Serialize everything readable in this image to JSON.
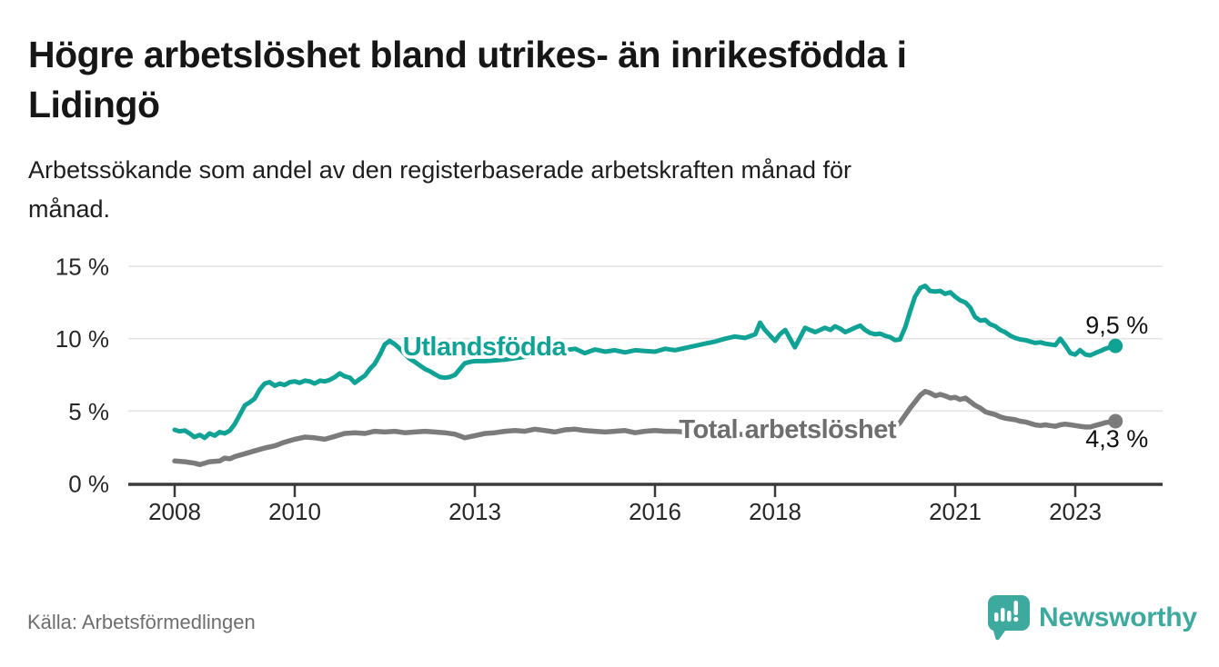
{
  "title": "Högre arbetslöshet bland utrikes- än inrikesfödda i\nLidingö",
  "subtitle": "Arbetssökande som andel av den registerbaserade arbetskraften månad för\nmånad.",
  "source": "Källa: Arbetsförmedlingen",
  "logo": {
    "text": "Newsworthy",
    "icon": "bar-chart-speech-bubble"
  },
  "colors": {
    "background": "#ffffff",
    "grid": "#e4e4e4",
    "axis": "#3a3a3a",
    "tick_label": "#272727",
    "foreign_series": "#11a296",
    "total_series": "#7b7b7b",
    "total_label": "#6e6e6e",
    "end_label": "#111111",
    "logo_teal": "#3ea99e"
  },
  "chart_data": {
    "type": "line",
    "title": "Högre arbetslöshet bland utrikes- än inrikesfödda i Lidingö",
    "xlabel": "",
    "ylabel": "Arbetssökande som andel av den registerbaserade arbetskraften",
    "y_unit": "%",
    "x_range": [
      2008.0,
      2023.67
    ],
    "ylim": [
      0,
      15
    ],
    "grid": "horizontal",
    "legend_position": "inline-labels",
    "x_ticks": [
      2008,
      2010,
      2013,
      2016,
      2018,
      2021,
      2023
    ],
    "x_tick_labels": [
      "2008",
      "2010",
      "2013",
      "2016",
      "2018",
      "2021",
      "2023"
    ],
    "y_ticks": [
      0,
      5,
      10,
      15
    ],
    "y_tick_labels": [
      "0 %",
      "5 %",
      "10 %",
      "15 %"
    ],
    "series": [
      {
        "id": "utlandsfodda",
        "name": "Utlandsfödda",
        "color": "#11a296",
        "end_value": 9.5,
        "label_anchor": {
          "year": 2011.8,
          "pct": 8.85
        },
        "end_label": {
          "text": "9,5 %",
          "year": 2023.17,
          "pct": 10.36
        },
        "points": [
          [
            2008.0,
            3.7
          ],
          [
            2008.08,
            3.6
          ],
          [
            2008.17,
            3.65
          ],
          [
            2008.25,
            3.45
          ],
          [
            2008.33,
            3.2
          ],
          [
            2008.42,
            3.35
          ],
          [
            2008.5,
            3.15
          ],
          [
            2008.58,
            3.45
          ],
          [
            2008.67,
            3.3
          ],
          [
            2008.75,
            3.55
          ],
          [
            2008.83,
            3.45
          ],
          [
            2008.92,
            3.65
          ],
          [
            2009.0,
            4.1
          ],
          [
            2009.08,
            4.7
          ],
          [
            2009.17,
            5.4
          ],
          [
            2009.25,
            5.6
          ],
          [
            2009.33,
            5.85
          ],
          [
            2009.42,
            6.5
          ],
          [
            2009.5,
            6.9
          ],
          [
            2009.58,
            7.0
          ],
          [
            2009.67,
            6.75
          ],
          [
            2009.75,
            6.9
          ],
          [
            2009.83,
            6.8
          ],
          [
            2009.92,
            7.0
          ],
          [
            2010.0,
            7.05
          ],
          [
            2010.08,
            6.95
          ],
          [
            2010.17,
            7.1
          ],
          [
            2010.25,
            7.05
          ],
          [
            2010.33,
            6.9
          ],
          [
            2010.42,
            7.1
          ],
          [
            2010.5,
            7.05
          ],
          [
            2010.58,
            7.15
          ],
          [
            2010.67,
            7.35
          ],
          [
            2010.75,
            7.6
          ],
          [
            2010.83,
            7.4
          ],
          [
            2010.92,
            7.3
          ],
          [
            2011.0,
            6.95
          ],
          [
            2011.08,
            7.2
          ],
          [
            2011.17,
            7.45
          ],
          [
            2011.25,
            7.9
          ],
          [
            2011.33,
            8.25
          ],
          [
            2011.42,
            8.9
          ],
          [
            2011.5,
            9.6
          ],
          [
            2011.58,
            9.85
          ],
          [
            2011.67,
            9.6
          ],
          [
            2011.75,
            9.3
          ],
          [
            2011.83,
            8.95
          ],
          [
            2011.92,
            8.6
          ],
          [
            2012.0,
            8.4
          ],
          [
            2012.08,
            8.15
          ],
          [
            2012.17,
            7.9
          ],
          [
            2012.25,
            7.75
          ],
          [
            2012.33,
            7.55
          ],
          [
            2012.42,
            7.35
          ],
          [
            2012.5,
            7.3
          ],
          [
            2012.58,
            7.35
          ],
          [
            2012.67,
            7.5
          ],
          [
            2012.75,
            7.9
          ],
          [
            2012.83,
            8.3
          ],
          [
            2012.92,
            8.4
          ],
          [
            2013.0,
            8.45
          ],
          [
            2013.17,
            8.45
          ],
          [
            2013.33,
            8.5
          ],
          [
            2013.5,
            8.55
          ],
          [
            2013.67,
            8.65
          ],
          [
            2013.83,
            8.75
          ],
          [
            2014.0,
            8.85
          ],
          [
            2014.17,
            8.95
          ],
          [
            2014.33,
            9.05
          ],
          [
            2014.5,
            9.2
          ],
          [
            2014.67,
            9.3
          ],
          [
            2014.83,
            9.0
          ],
          [
            2015.0,
            9.25
          ],
          [
            2015.17,
            9.1
          ],
          [
            2015.33,
            9.2
          ],
          [
            2015.5,
            9.05
          ],
          [
            2015.67,
            9.2
          ],
          [
            2015.83,
            9.15
          ],
          [
            2016.0,
            9.1
          ],
          [
            2016.17,
            9.3
          ],
          [
            2016.33,
            9.2
          ],
          [
            2016.5,
            9.35
          ],
          [
            2016.67,
            9.5
          ],
          [
            2016.83,
            9.65
          ],
          [
            2017.0,
            9.8
          ],
          [
            2017.17,
            10.0
          ],
          [
            2017.33,
            10.15
          ],
          [
            2017.5,
            10.05
          ],
          [
            2017.67,
            10.3
          ],
          [
            2017.75,
            11.1
          ],
          [
            2017.83,
            10.6
          ],
          [
            2018.0,
            9.85
          ],
          [
            2018.08,
            10.3
          ],
          [
            2018.17,
            10.6
          ],
          [
            2018.25,
            10.0
          ],
          [
            2018.33,
            9.4
          ],
          [
            2018.42,
            10.1
          ],
          [
            2018.5,
            10.75
          ],
          [
            2018.58,
            10.6
          ],
          [
            2018.67,
            10.45
          ],
          [
            2018.75,
            10.6
          ],
          [
            2018.83,
            10.75
          ],
          [
            2018.92,
            10.6
          ],
          [
            2019.0,
            10.85
          ],
          [
            2019.08,
            10.7
          ],
          [
            2019.17,
            10.45
          ],
          [
            2019.25,
            10.6
          ],
          [
            2019.33,
            10.75
          ],
          [
            2019.42,
            10.9
          ],
          [
            2019.5,
            10.6
          ],
          [
            2019.58,
            10.4
          ],
          [
            2019.67,
            10.3
          ],
          [
            2019.75,
            10.35
          ],
          [
            2019.83,
            10.2
          ],
          [
            2019.92,
            10.1
          ],
          [
            2020.0,
            9.9
          ],
          [
            2020.08,
            9.95
          ],
          [
            2020.17,
            10.8
          ],
          [
            2020.25,
            11.9
          ],
          [
            2020.33,
            12.9
          ],
          [
            2020.42,
            13.5
          ],
          [
            2020.5,
            13.65
          ],
          [
            2020.58,
            13.3
          ],
          [
            2020.67,
            13.25
          ],
          [
            2020.75,
            13.3
          ],
          [
            2020.83,
            13.1
          ],
          [
            2020.92,
            13.2
          ],
          [
            2021.0,
            12.9
          ],
          [
            2021.08,
            12.65
          ],
          [
            2021.17,
            12.5
          ],
          [
            2021.25,
            12.15
          ],
          [
            2021.33,
            11.5
          ],
          [
            2021.42,
            11.25
          ],
          [
            2021.5,
            11.3
          ],
          [
            2021.58,
            11.0
          ],
          [
            2021.67,
            10.85
          ],
          [
            2021.75,
            10.6
          ],
          [
            2021.83,
            10.45
          ],
          [
            2021.92,
            10.2
          ],
          [
            2022.0,
            10.05
          ],
          [
            2022.08,
            9.95
          ],
          [
            2022.17,
            9.9
          ],
          [
            2022.25,
            9.8
          ],
          [
            2022.33,
            9.7
          ],
          [
            2022.42,
            9.75
          ],
          [
            2022.5,
            9.65
          ],
          [
            2022.58,
            9.6
          ],
          [
            2022.67,
            9.55
          ],
          [
            2022.75,
            10.0
          ],
          [
            2022.83,
            9.55
          ],
          [
            2022.92,
            9.0
          ],
          [
            2023.0,
            8.9
          ],
          [
            2023.08,
            9.2
          ],
          [
            2023.17,
            8.9
          ],
          [
            2023.25,
            8.85
          ],
          [
            2023.33,
            9.0
          ],
          [
            2023.42,
            9.15
          ],
          [
            2023.5,
            9.3
          ],
          [
            2023.58,
            9.4
          ],
          [
            2023.67,
            9.5
          ]
        ]
      },
      {
        "id": "total",
        "name": "Total arbetslöshet",
        "color": "#7b7b7b",
        "label_color": "#6e6e6e",
        "end_value": 4.3,
        "label_anchor": {
          "year": 2016.4,
          "pct": 3.14
        },
        "end_label": {
          "text": "4,3 %",
          "year": 2023.17,
          "pct": 2.51
        },
        "points": [
          [
            2008.0,
            1.55
          ],
          [
            2008.17,
            1.5
          ],
          [
            2008.33,
            1.4
          ],
          [
            2008.42,
            1.3
          ],
          [
            2008.58,
            1.5
          ],
          [
            2008.75,
            1.55
          ],
          [
            2008.83,
            1.75
          ],
          [
            2008.92,
            1.7
          ],
          [
            2009.0,
            1.85
          ],
          [
            2009.17,
            2.05
          ],
          [
            2009.33,
            2.25
          ],
          [
            2009.5,
            2.45
          ],
          [
            2009.67,
            2.6
          ],
          [
            2009.83,
            2.85
          ],
          [
            2010.0,
            3.05
          ],
          [
            2010.17,
            3.2
          ],
          [
            2010.33,
            3.15
          ],
          [
            2010.5,
            3.05
          ],
          [
            2010.67,
            3.25
          ],
          [
            2010.83,
            3.45
          ],
          [
            2011.0,
            3.5
          ],
          [
            2011.17,
            3.45
          ],
          [
            2011.33,
            3.6
          ],
          [
            2011.5,
            3.55
          ],
          [
            2011.67,
            3.6
          ],
          [
            2011.83,
            3.5
          ],
          [
            2012.0,
            3.55
          ],
          [
            2012.17,
            3.6
          ],
          [
            2012.33,
            3.55
          ],
          [
            2012.5,
            3.5
          ],
          [
            2012.67,
            3.4
          ],
          [
            2012.83,
            3.15
          ],
          [
            2013.0,
            3.3
          ],
          [
            2013.17,
            3.45
          ],
          [
            2013.33,
            3.5
          ],
          [
            2013.5,
            3.6
          ],
          [
            2013.67,
            3.65
          ],
          [
            2013.83,
            3.6
          ],
          [
            2014.0,
            3.75
          ],
          [
            2014.17,
            3.65
          ],
          [
            2014.33,
            3.55
          ],
          [
            2014.5,
            3.7
          ],
          [
            2014.67,
            3.75
          ],
          [
            2014.83,
            3.65
          ],
          [
            2015.0,
            3.6
          ],
          [
            2015.17,
            3.55
          ],
          [
            2015.33,
            3.6
          ],
          [
            2015.5,
            3.65
          ],
          [
            2015.67,
            3.5
          ],
          [
            2015.83,
            3.6
          ],
          [
            2016.0,
            3.65
          ],
          [
            2016.17,
            3.6
          ],
          [
            2016.33,
            3.6
          ],
          [
            2016.67,
            3.5
          ],
          [
            2017.0,
            3.45
          ],
          [
            2017.33,
            3.4
          ],
          [
            2017.67,
            3.35
          ],
          [
            2018.0,
            3.3
          ],
          [
            2018.33,
            3.25
          ],
          [
            2018.67,
            3.25
          ],
          [
            2019.0,
            3.3
          ],
          [
            2019.33,
            3.35
          ],
          [
            2019.67,
            3.4
          ],
          [
            2019.92,
            3.55
          ],
          [
            2020.08,
            4.2
          ],
          [
            2020.25,
            5.2
          ],
          [
            2020.42,
            6.1
          ],
          [
            2020.5,
            6.35
          ],
          [
            2020.58,
            6.25
          ],
          [
            2020.67,
            6.05
          ],
          [
            2020.75,
            6.15
          ],
          [
            2020.83,
            6.05
          ],
          [
            2020.92,
            5.9
          ],
          [
            2021.0,
            5.95
          ],
          [
            2021.08,
            5.8
          ],
          [
            2021.17,
            5.9
          ],
          [
            2021.25,
            5.65
          ],
          [
            2021.33,
            5.4
          ],
          [
            2021.42,
            5.2
          ],
          [
            2021.5,
            4.95
          ],
          [
            2021.58,
            4.85
          ],
          [
            2021.67,
            4.75
          ],
          [
            2021.75,
            4.6
          ],
          [
            2021.83,
            4.5
          ],
          [
            2021.92,
            4.45
          ],
          [
            2022.0,
            4.4
          ],
          [
            2022.08,
            4.3
          ],
          [
            2022.17,
            4.25
          ],
          [
            2022.25,
            4.15
          ],
          [
            2022.33,
            4.05
          ],
          [
            2022.42,
            4.0
          ],
          [
            2022.5,
            4.05
          ],
          [
            2022.58,
            4.0
          ],
          [
            2022.67,
            3.95
          ],
          [
            2022.75,
            4.05
          ],
          [
            2022.83,
            4.1
          ],
          [
            2022.92,
            4.05
          ],
          [
            2023.0,
            4.0
          ],
          [
            2023.08,
            3.95
          ],
          [
            2023.17,
            3.9
          ],
          [
            2023.25,
            3.9
          ],
          [
            2023.33,
            4.0
          ],
          [
            2023.42,
            4.1
          ],
          [
            2023.5,
            4.2
          ],
          [
            2023.58,
            4.25
          ],
          [
            2023.67,
            4.3
          ]
        ]
      }
    ]
  }
}
